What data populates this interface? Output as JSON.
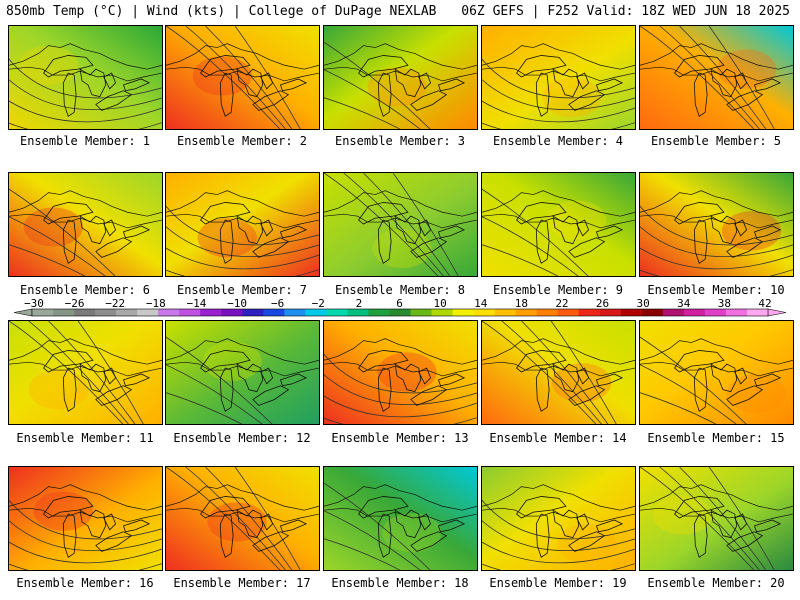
{
  "header": {
    "left": "850mb Temp (°C) | Wind (kts) | College of DuPage NEXLAB",
    "right": "06Z GEFS | F252 Valid: 18Z WED JUN 18 2025"
  },
  "members": [
    {
      "label": "Ensemble Member: 1",
      "base": "#9cd62a",
      "warm": "#f0d800",
      "cool": "#2aa838"
    },
    {
      "label": "Ensemble Member: 2",
      "base": "#ffb000",
      "warm": "#ee3020",
      "cool": "#f0e000"
    },
    {
      "label": "Ensemble Member: 3",
      "base": "#c8e000",
      "warm": "#ff8a00",
      "cool": "#38a838"
    },
    {
      "label": "Ensemble Member: 4",
      "base": "#f0e000",
      "warm": "#ffb000",
      "cool": "#9cd62a"
    },
    {
      "label": "Ensemble Member: 5",
      "base": "#ffb000",
      "warm": "#ff6a10",
      "cool": "#00c8d8"
    },
    {
      "label": "Ensemble Member: 6",
      "base": "#f0e000",
      "warm": "#ee3020",
      "cool": "#9cd62a"
    },
    {
      "label": "Ensemble Member: 7",
      "base": "#f0e000",
      "warm": "#ee3020",
      "cool": "#ffb000"
    },
    {
      "label": "Ensemble Member: 8",
      "base": "#8ccc30",
      "warm": "#c8e000",
      "cool": "#38a838"
    },
    {
      "label": "Ensemble Member: 9",
      "base": "#c8e000",
      "warm": "#f0e000",
      "cool": "#38a838"
    },
    {
      "label": "Ensemble Member: 10",
      "base": "#f0e000",
      "warm": "#ee3020",
      "cool": "#38a838"
    },
    {
      "label": "Ensemble Member: 11",
      "base": "#f0e000",
      "warm": "#ffb000",
      "cool": "#c8e000"
    },
    {
      "label": "Ensemble Member: 12",
      "base": "#58b838",
      "warm": "#c8e000",
      "cool": "#20a060"
    },
    {
      "label": "Ensemble Member: 13",
      "base": "#ffb000",
      "warm": "#ee3020",
      "cool": "#f0e000"
    },
    {
      "label": "Ensemble Member: 14",
      "base": "#f0e000",
      "warm": "#ff6a10",
      "cool": "#c8e000"
    },
    {
      "label": "Ensemble Member: 15",
      "base": "#ffc800",
      "warm": "#ff8a00",
      "cool": "#f0e000"
    },
    {
      "label": "Ensemble Member: 16",
      "base": "#ffb000",
      "warm": "#ee3020",
      "cool": "#f0e000"
    },
    {
      "label": "Ensemble Member: 17",
      "base": "#ffb000",
      "warm": "#ee3020",
      "cool": "#f0e000"
    },
    {
      "label": "Ensemble Member: 18",
      "base": "#38a838",
      "warm": "#9cd62a",
      "cool": "#00c8d8"
    },
    {
      "label": "Ensemble Member: 19",
      "base": "#f0e000",
      "warm": "#ffb000",
      "cool": "#8ccc30"
    },
    {
      "label": "Ensemble Member: 20",
      "base": "#9cd62a",
      "warm": "#f0e000",
      "cool": "#2a8a40"
    }
  ],
  "colorbar": {
    "labels": [
      "−30",
      "−26",
      "−22",
      "−18",
      "−14",
      "−10",
      "−6",
      "−2",
      "2",
      "6",
      "10",
      "14",
      "18",
      "22",
      "26",
      "30",
      "34",
      "38",
      "42"
    ],
    "colors": [
      "#9aa89a",
      "#869686",
      "#7a7a7a",
      "#8c8c8c",
      "#a8a8a8",
      "#c8c8c8",
      "#c878e8",
      "#c050e0",
      "#9a20d0",
      "#7a10c0",
      "#3020c0",
      "#1848e0",
      "#2090f0",
      "#00c8e8",
      "#00d8b0",
      "#00c080",
      "#20a040",
      "#2a8a30",
      "#6ab818",
      "#b0d800",
      "#f0f000",
      "#ffe000",
      "#ffc000",
      "#ffa000",
      "#ff8000",
      "#ff5a10",
      "#ee2818",
      "#d81818",
      "#b00000",
      "#8a0000",
      "#b01070",
      "#d020a0",
      "#e040c8",
      "#f070e0",
      "#ffa8f0"
    ]
  }
}
